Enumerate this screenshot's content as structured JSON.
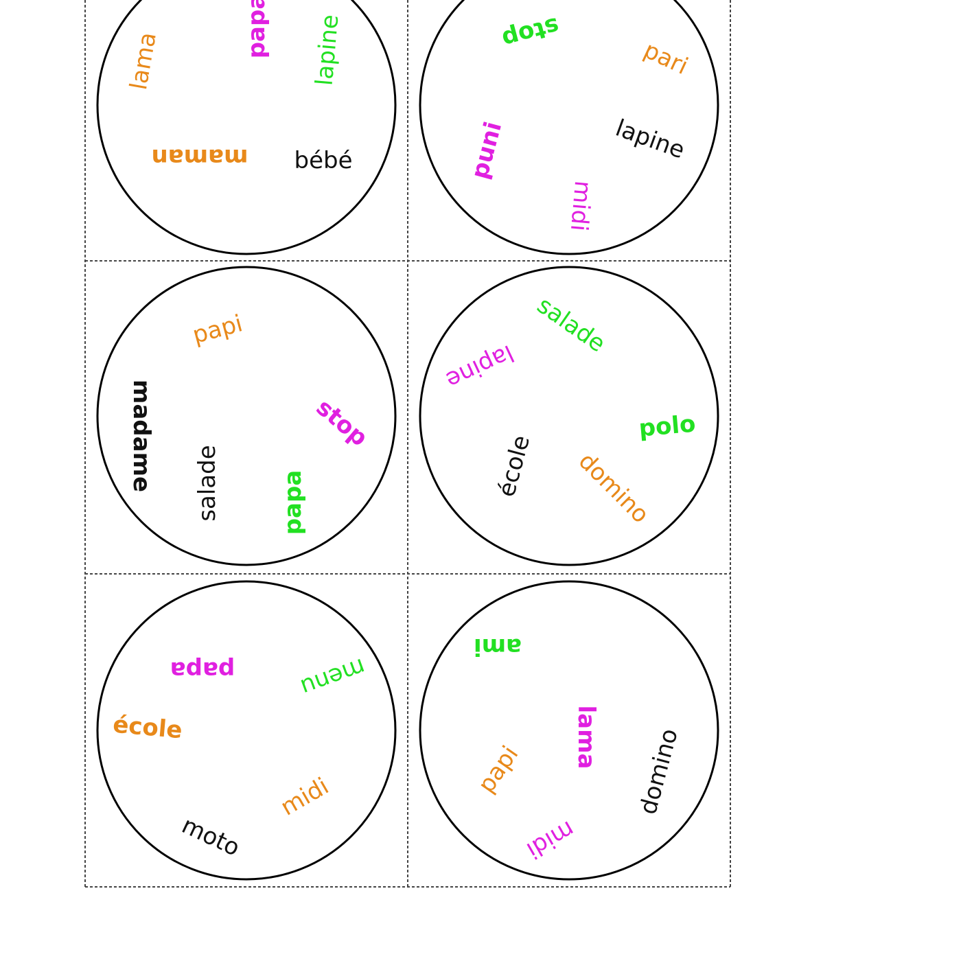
{
  "colors": {
    "orange": "#e8891a",
    "magenta": "#e020e0",
    "green": "#22e022",
    "black": "#111111",
    "circle_stroke": "#000000",
    "cut_line": "#444444"
  },
  "cards": [
    {
      "words": [
        {
          "text": "lama",
          "color": "orange",
          "rotation": -80
        },
        {
          "text": "papa",
          "color": "magenta",
          "rotation": -90
        },
        {
          "text": "lapine",
          "color": "green",
          "rotation": -85
        },
        {
          "text": "maman",
          "color": "orange",
          "rotation": 180
        },
        {
          "text": "bébé",
          "color": "black",
          "rotation": 0
        }
      ]
    },
    {
      "words": [
        {
          "text": "stop",
          "color": "green",
          "rotation": 165
        },
        {
          "text": "pari",
          "color": "orange",
          "rotation": 25
        },
        {
          "text": "lapine",
          "color": "black",
          "rotation": 20
        },
        {
          "text": "puni",
          "color": "magenta",
          "rotation": -75
        },
        {
          "text": "midi",
          "color": "magenta",
          "rotation": 95
        }
      ]
    },
    {
      "words": [
        {
          "text": "papi",
          "color": "orange",
          "rotation": -15
        },
        {
          "text": "madame",
          "color": "black",
          "rotation": 90
        },
        {
          "text": "salade",
          "color": "black",
          "rotation": -90
        },
        {
          "text": "stop",
          "color": "magenta",
          "rotation": 40
        },
        {
          "text": "papa",
          "color": "green",
          "rotation": -90
        }
      ]
    },
    {
      "words": [
        {
          "text": "salade",
          "color": "green",
          "rotation": 35
        },
        {
          "text": "lapine",
          "color": "magenta",
          "rotation": 155
        },
        {
          "text": "polo",
          "color": "green",
          "rotation": -5
        },
        {
          "text": "école",
          "color": "black",
          "rotation": -75
        },
        {
          "text": "domino",
          "color": "orange",
          "rotation": 45
        }
      ]
    },
    {
      "words": [
        {
          "text": "papa",
          "color": "magenta",
          "rotation": 180
        },
        {
          "text": "menu",
          "color": "green",
          "rotation": 160
        },
        {
          "text": "école",
          "color": "orange",
          "rotation": 5
        },
        {
          "text": "midi",
          "color": "orange",
          "rotation": -30
        },
        {
          "text": "moto",
          "color": "black",
          "rotation": 25
        }
      ]
    },
    {
      "words": [
        {
          "text": "ami",
          "color": "green",
          "rotation": 180
        },
        {
          "text": "lama",
          "color": "magenta",
          "rotation": 90
        },
        {
          "text": "papi",
          "color": "orange",
          "rotation": -55
        },
        {
          "text": "domino",
          "color": "black",
          "rotation": -75
        },
        {
          "text": "midi",
          "color": "magenta",
          "rotation": 150
        }
      ]
    }
  ]
}
